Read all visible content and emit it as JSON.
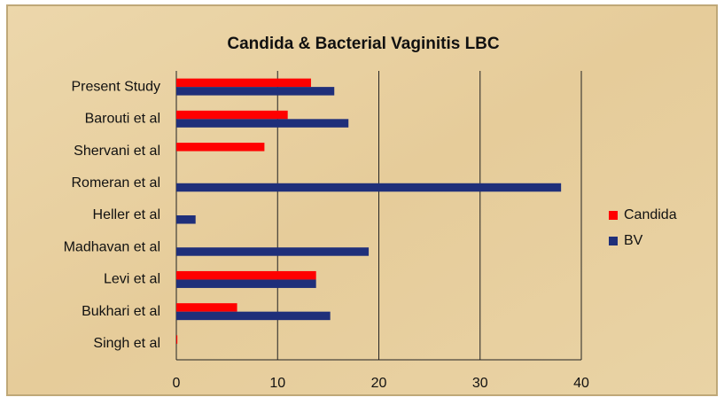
{
  "chart_data": {
    "type": "bar",
    "orientation": "horizontal",
    "title": "Candida & Bacterial Vaginitis  LBC",
    "categories": [
      "Present Study",
      "Barouti et al",
      "Shervani et al",
      "Romeran et al",
      "Heller et al",
      "Madhavan et al",
      "Levi et al",
      "Bukhari et al",
      "Singh et al"
    ],
    "series": [
      {
        "name": "Candida",
        "color": "#ff0000",
        "values": [
          13.3,
          11.0,
          8.7,
          0,
          0,
          0,
          13.8,
          6.0,
          0.1
        ]
      },
      {
        "name": "BV",
        "color": "#1f2f7a",
        "values": [
          15.6,
          17.0,
          0,
          38.0,
          1.9,
          19.0,
          13.8,
          15.2,
          0
        ]
      }
    ],
    "xlim": [
      0,
      40
    ],
    "xticks": [
      0,
      10,
      20,
      30,
      40
    ],
    "grid": true,
    "legend": "right"
  }
}
